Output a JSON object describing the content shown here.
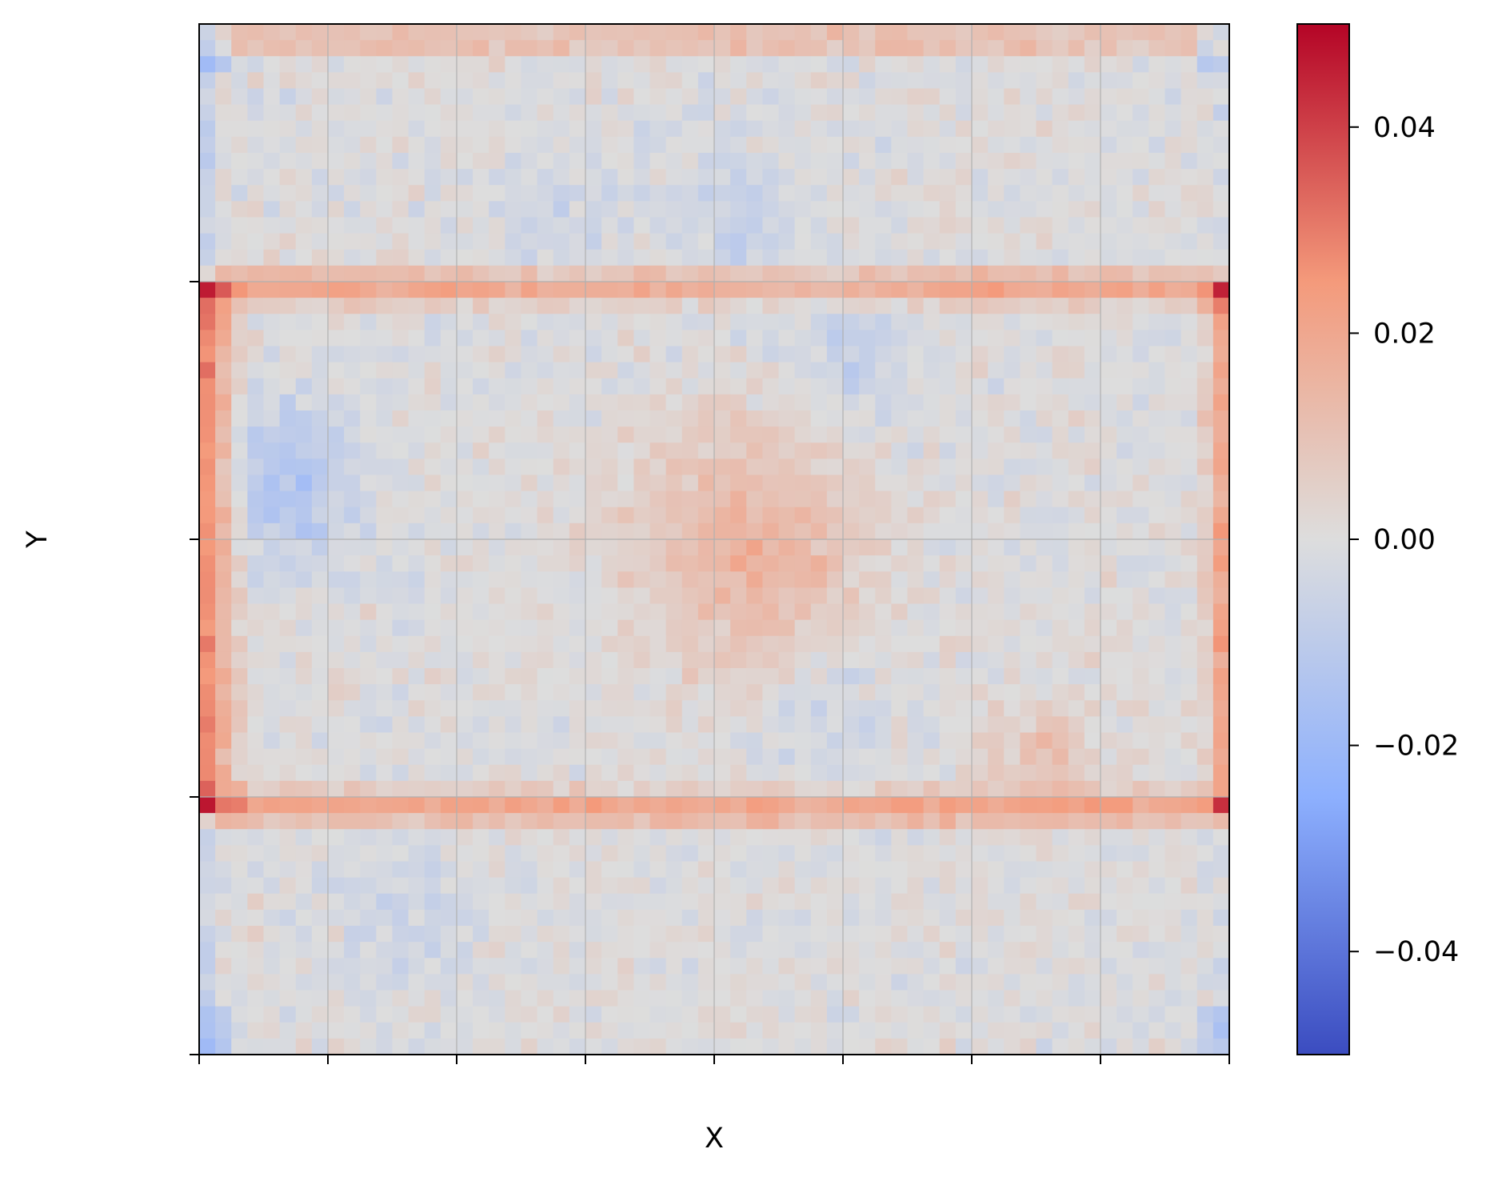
{
  "chart_data": {
    "type": "heatmap",
    "title": "",
    "xlabel": "X",
    "ylabel": "Y",
    "grid": true,
    "rows": 64,
    "cols": 64,
    "x_tick_count": 9,
    "y_tick_count": 4,
    "x_tick_labels": [],
    "y_tick_labels": [],
    "colormap": "coolwarm",
    "colormap_stops": [
      "#3b4cc0",
      "#8db0fe",
      "#dddddd",
      "#f49a7b",
      "#b40426"
    ],
    "colorbar": {
      "vmin": -0.05,
      "vmax": 0.05,
      "ticks": [
        0.04,
        0.02,
        0.0,
        -0.02,
        -0.04
      ],
      "tick_labels": [
        "0.04",
        "0.02",
        "0.00",
        "−0.02",
        "−0.04"
      ]
    },
    "value_model": {
      "description_of_field": "noise-like field; positive bands along rows near the 1/4 and 3/4 horizontal gridlines, positive left/right edges in the middle rows, positive blob at center, negative patches inside quadrants",
      "value_range": [
        -0.035,
        0.043
      ]
    }
  }
}
